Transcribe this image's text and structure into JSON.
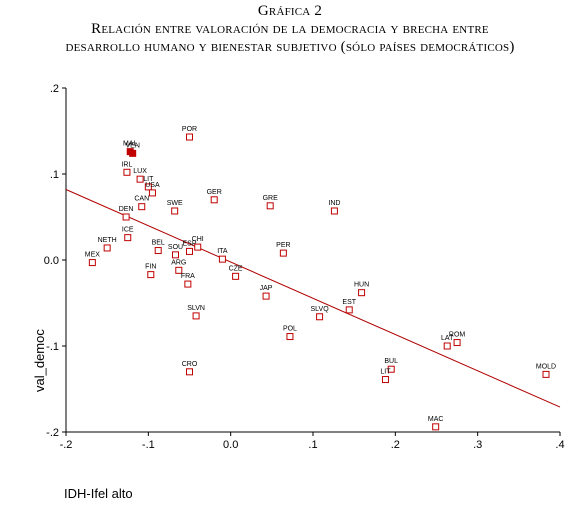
{
  "figure": {
    "title_line1": "Gráfica 2",
    "title_line2": "Relación entre valoración de la democracia y brecha entre",
    "title_line3": "desarrollo humano y bienestar subjetivo (sólo países democráticos)"
  },
  "colors": {
    "marker": "#c00000",
    "fit_line": "#b00000",
    "axis": "#000000"
  },
  "chart_data": {
    "type": "scatter",
    "xlabel": "IDH-Ifel alto",
    "ylabel": "val_democ",
    "xlim": [
      -0.2,
      0.4
    ],
    "ylim": [
      -0.2,
      0.2
    ],
    "xticks": [
      -0.2,
      -0.1,
      0.0,
      0.1,
      0.2,
      0.3,
      0.4
    ],
    "xtick_labels": [
      "-.2",
      "-.1",
      "0.0",
      ".1",
      ".2",
      ".3",
      ".4"
    ],
    "yticks": [
      0.2,
      0.1,
      0.0,
      -0.1,
      -0.2
    ],
    "ytick_labels": [
      ".2",
      ".1",
      "0.0",
      "-.1",
      "-.2"
    ],
    "grid": false,
    "fit_line": {
      "x": [
        -0.2,
        0.4
      ],
      "y": [
        0.082,
        -0.171
      ]
    },
    "points": [
      {
        "label": "MAL",
        "x": -0.122,
        "y": 0.126,
        "filled": true
      },
      {
        "label": "VEN",
        "x": -0.119,
        "y": 0.124,
        "filled": true
      },
      {
        "label": "POR",
        "x": -0.05,
        "y": 0.143,
        "filled": false
      },
      {
        "label": "IRL",
        "x": -0.126,
        "y": 0.102,
        "filled": false
      },
      {
        "label": "LUX",
        "x": -0.11,
        "y": 0.094,
        "filled": false
      },
      {
        "label": "LIT",
        "x": -0.1,
        "y": 0.085,
        "filled": false
      },
      {
        "label": "USA",
        "x": -0.095,
        "y": 0.078,
        "filled": false
      },
      {
        "label": "CAN",
        "x": -0.108,
        "y": 0.062,
        "filled": false
      },
      {
        "label": "DEN",
        "x": -0.127,
        "y": 0.05,
        "filled": false
      },
      {
        "label": "SWE",
        "x": -0.068,
        "y": 0.057,
        "filled": false
      },
      {
        "label": "GER",
        "x": -0.02,
        "y": 0.07,
        "filled": false
      },
      {
        "label": "GRE",
        "x": 0.048,
        "y": 0.063,
        "filled": false
      },
      {
        "label": "IND",
        "x": 0.126,
        "y": 0.057,
        "filled": false
      },
      {
        "label": "ICE",
        "x": -0.125,
        "y": 0.026,
        "filled": false
      },
      {
        "label": "NETH",
        "x": -0.15,
        "y": 0.014,
        "filled": false
      },
      {
        "label": "BEL",
        "x": -0.088,
        "y": 0.011,
        "filled": false
      },
      {
        "label": "SOU",
        "x": -0.067,
        "y": 0.006,
        "filled": false
      },
      {
        "label": "ESP",
        "x": -0.05,
        "y": 0.01,
        "filled": false
      },
      {
        "label": "CHI",
        "x": -0.04,
        "y": 0.015,
        "filled": false
      },
      {
        "label": "MEX",
        "x": -0.168,
        "y": -0.003,
        "filled": false
      },
      {
        "label": "ARG",
        "x": -0.063,
        "y": -0.012,
        "filled": false
      },
      {
        "label": "FIN",
        "x": -0.097,
        "y": -0.017,
        "filled": false
      },
      {
        "label": "FRA",
        "x": -0.052,
        "y": -0.028,
        "filled": false
      },
      {
        "label": "ITA",
        "x": -0.01,
        "y": 0.001,
        "filled": false
      },
      {
        "label": "CZE",
        "x": 0.006,
        "y": -0.019,
        "filled": false
      },
      {
        "label": "PER",
        "x": 0.064,
        "y": 0.008,
        "filled": false
      },
      {
        "label": "JAP",
        "x": 0.043,
        "y": -0.042,
        "filled": false
      },
      {
        "label": "SLVN",
        "x": -0.042,
        "y": -0.065,
        "filled": false
      },
      {
        "label": "POL",
        "x": 0.072,
        "y": -0.089,
        "filled": false
      },
      {
        "label": "SLVQ",
        "x": 0.108,
        "y": -0.066,
        "filled": false
      },
      {
        "label": "HUN",
        "x": 0.159,
        "y": -0.038,
        "filled": false
      },
      {
        "label": "EST",
        "x": 0.144,
        "y": -0.058,
        "filled": false
      },
      {
        "label": "ROM",
        "x": 0.275,
        "y": -0.096,
        "filled": false
      },
      {
        "label": "LAT",
        "x": 0.263,
        "y": -0.1,
        "filled": false
      },
      {
        "label": "MOLD",
        "x": 0.383,
        "y": -0.133,
        "filled": false
      },
      {
        "label": "CRO",
        "x": -0.05,
        "y": -0.13,
        "filled": false
      },
      {
        "label": "BUL",
        "x": 0.195,
        "y": -0.127,
        "filled": false
      },
      {
        "label": "LIT",
        "x": 0.188,
        "y": -0.139,
        "filled": false
      },
      {
        "label": "MAC",
        "x": 0.249,
        "y": -0.194,
        "filled": false
      }
    ]
  }
}
